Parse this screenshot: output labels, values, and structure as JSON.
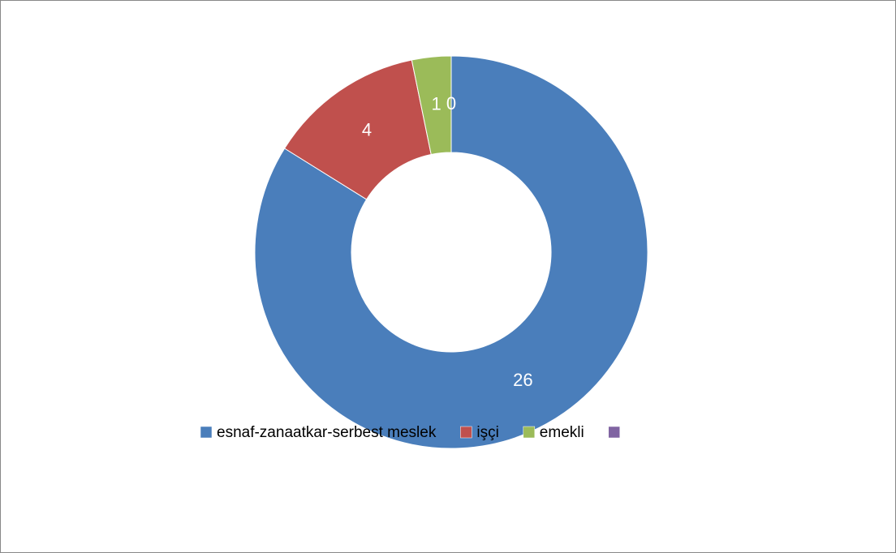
{
  "chart_data": {
    "type": "doughnut",
    "categories": [
      "esnaf-zanaatkar-serbest meslek",
      "işçi",
      "emekli",
      null
    ],
    "values": [
      26,
      4,
      1,
      0
    ],
    "colors": [
      "#4a7ebb",
      "#c0504d",
      "#9bbb59",
      "#8064a2"
    ],
    "legend": "bottom"
  }
}
